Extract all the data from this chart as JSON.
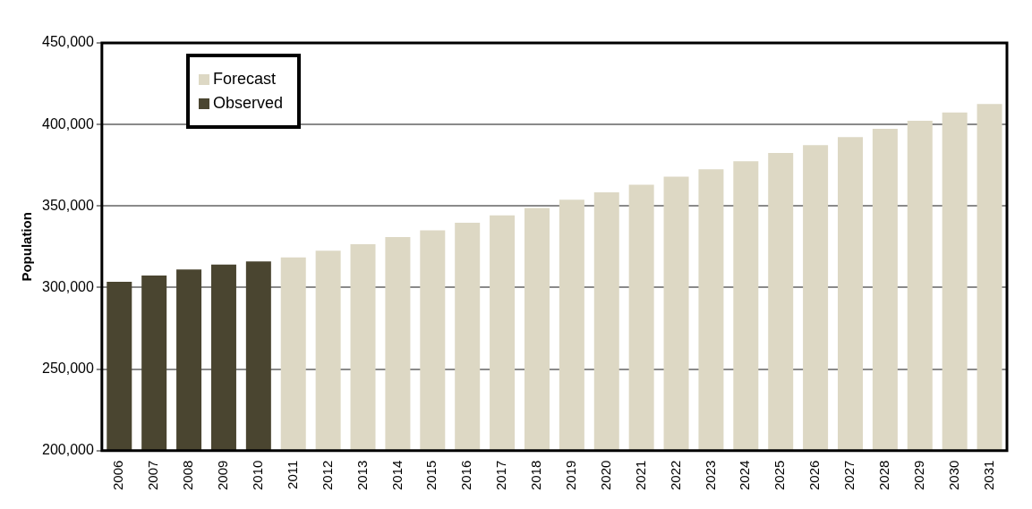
{
  "chart_data": {
    "type": "bar",
    "ylabel": "Population",
    "categories": [
      "2006",
      "2007",
      "2008",
      "2009",
      "2010",
      "2011",
      "2012",
      "2013",
      "2014",
      "2015",
      "2016",
      "2017",
      "2018",
      "2019",
      "2020",
      "2021",
      "2022",
      "2023",
      "2024",
      "2025",
      "2026",
      "2027",
      "2028",
      "2029",
      "2030",
      "2031"
    ],
    "series": [
      {
        "name": "Forecast",
        "color": "#ddd8c4",
        "values": [
          null,
          null,
          null,
          null,
          null,
          318500,
          322500,
          326500,
          331000,
          335000,
          339700,
          344300,
          348700,
          353800,
          358400,
          363000,
          368000,
          372500,
          377500,
          382500,
          387300,
          392200,
          397300,
          402300,
          407300,
          412500
        ]
      },
      {
        "name": "Observed",
        "color": "#4a4530",
        "values": [
          303500,
          307400,
          311000,
          314000,
          316000,
          null,
          null,
          null,
          null,
          null,
          null,
          null,
          null,
          null,
          null,
          null,
          null,
          null,
          null,
          null,
          null,
          null,
          null,
          null,
          null,
          null
        ]
      }
    ],
    "stacked": true,
    "ylim": [
      200000,
      450000
    ],
    "yticks": [
      {
        "value": 200000,
        "label": "200,000"
      },
      {
        "value": 250000,
        "label": "250,000"
      },
      {
        "value": 300000,
        "label": "300,000"
      },
      {
        "value": 350000,
        "label": "350,000"
      },
      {
        "value": 400000,
        "label": "400,000"
      },
      {
        "value": 450000,
        "label": "450,000"
      }
    ],
    "grid": "y",
    "legend": "top left"
  }
}
